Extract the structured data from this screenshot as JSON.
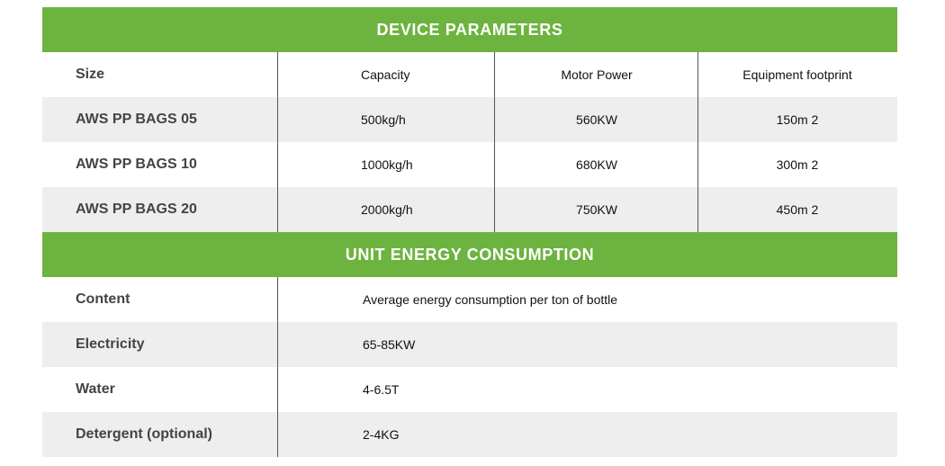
{
  "device_parameters": {
    "title": "DEVICE PARAMETERS",
    "header": [
      "Size",
      "Capacity",
      "Motor Power",
      "Equipment footprint"
    ],
    "rows": [
      [
        "AWS PP BAGS 05",
        "500kg/h",
        "560KW",
        "150m 2"
      ],
      [
        "AWS PP BAGS 10",
        "1000kg/h",
        "680KW",
        "300m 2"
      ],
      [
        "AWS PP BAGS 20",
        "2000kg/h",
        "750KW",
        "450m 2"
      ]
    ]
  },
  "unit_energy_consumption": {
    "title": "UNIT ENERGY CONSUMPTION",
    "rows": [
      [
        "Content",
        "Average energy consumption per ton of bottle"
      ],
      [
        "Electricity",
        "65-85KW"
      ],
      [
        "Water",
        "4-6.5T"
      ],
      [
        "Detergent (optional)",
        "2-4KG"
      ]
    ]
  }
}
